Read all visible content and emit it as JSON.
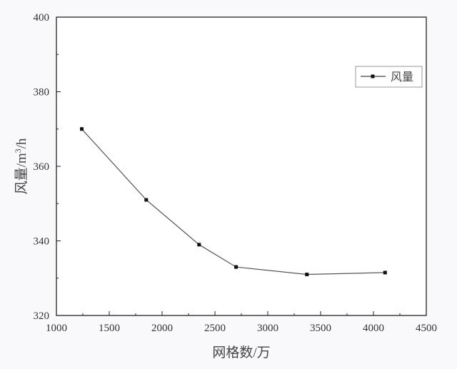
{
  "chart_data": {
    "type": "line",
    "title": "",
    "xlabel": "网格数/万",
    "ylabel": "风量/m³/h",
    "ylabel_parts": {
      "main": "风量/m",
      "sup": "3",
      "tail": "/h"
    },
    "xlim": [
      1000,
      4500
    ],
    "ylim": [
      320,
      400
    ],
    "x_ticks": [
      1000,
      1500,
      2000,
      2500,
      3000,
      3500,
      4000,
      4500
    ],
    "y_ticks": [
      320,
      340,
      360,
      380,
      400
    ],
    "grid": false,
    "legend_position": "upper right",
    "series": [
      {
        "name": "风量",
        "color": "#222222",
        "marker": "square",
        "x": [
          1240,
          1850,
          2350,
          2700,
          3370,
          4110
        ],
        "values": [
          370,
          351,
          339,
          333,
          331,
          331.5
        ]
      }
    ]
  },
  "colors": {
    "background": "#f9f9fb",
    "axis": "#222222",
    "line": "#555555",
    "marker": "#111111"
  }
}
